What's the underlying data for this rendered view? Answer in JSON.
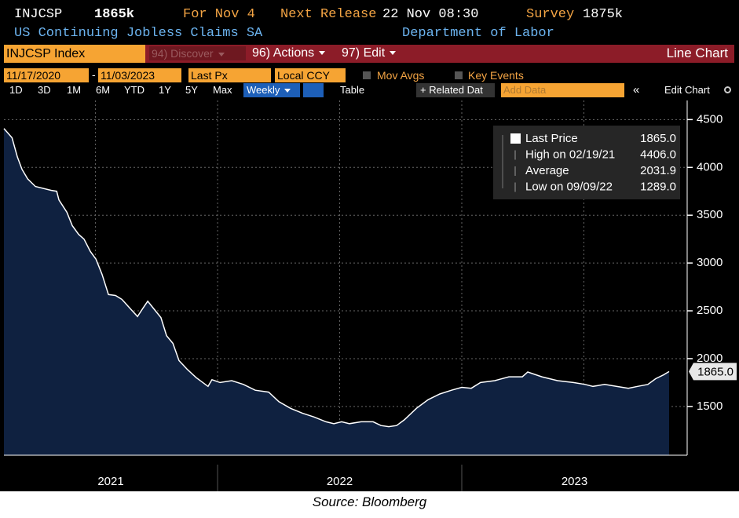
{
  "header": {
    "ticker": "INJCSP",
    "last": "1865k",
    "for": "For Nov 4",
    "next_release_label": "Next Release",
    "next_release": "22 Nov 08:30",
    "survey_label": "Survey",
    "survey": "1875k",
    "name": "US Continuing Jobless Claims SA",
    "source_org": "Department of Labor"
  },
  "toolbar": {
    "security": "INJCSP Index",
    "discover": "94) Discover",
    "actions": "96) Actions",
    "edit": "97) Edit",
    "chart_type": "Line Chart",
    "start_date": "11/17/2020",
    "dash": "-",
    "end_date": "11/03/2023",
    "field": "Last Px",
    "currency": "Local CCY",
    "mov_avgs": "Mov Avgs",
    "key_events": "Key Events",
    "periods": [
      "1D",
      "3D",
      "1M",
      "6M",
      "YTD",
      "1Y",
      "5Y",
      "Max"
    ],
    "frequency": "Weekly",
    "table": "Table",
    "related": "+ Related Dat",
    "add_data": "Add Data",
    "collapse": "«",
    "edit_chart": "Edit Chart"
  },
  "chart_data": {
    "type": "line",
    "color": "#ffffff",
    "fill": "#0f2140",
    "grid": true,
    "x": [
      2021.125,
      2021.158,
      2021.18,
      2021.199,
      2021.222,
      2021.254,
      2021.318,
      2021.341,
      2021.35,
      2021.383,
      2021.405,
      2021.431,
      2021.453,
      2021.479,
      2021.502,
      2021.527,
      2021.553,
      2021.582,
      2021.608,
      2021.64,
      2021.672,
      2021.695,
      2021.714,
      2021.736,
      2021.768,
      2021.791,
      2021.817,
      2021.842,
      2021.875,
      2021.913,
      2021.961,
      2021.977,
      2022.01,
      2022.058,
      2022.106,
      2022.154,
      2022.209,
      2022.251,
      2022.299,
      2022.347,
      2022.395,
      2022.444,
      2022.476,
      2022.508,
      2022.54,
      2022.588,
      2022.637,
      2022.669,
      2022.701,
      2022.733,
      2022.765,
      2022.814,
      2022.862,
      2022.91,
      2022.958,
      2023.0,
      2023.039,
      2023.077,
      2023.135,
      2023.193,
      2023.248,
      2023.27,
      2023.328,
      2023.392,
      2023.457,
      2023.505,
      2023.537,
      2023.585,
      2023.633,
      2023.682,
      2023.72,
      2023.762,
      2023.794,
      2023.826,
      2023.849
    ],
    "values": [
      4406,
      4310,
      4110,
      3980,
      3880,
      3800,
      3760,
      3750,
      3660,
      3530,
      3390,
      3300,
      3250,
      3120,
      3040,
      2880,
      2670,
      2660,
      2620,
      2530,
      2440,
      2530,
      2600,
      2530,
      2430,
      2240,
      2160,
      1980,
      1890,
      1800,
      1710,
      1780,
      1750,
      1770,
      1730,
      1670,
      1650,
      1550,
      1480,
      1430,
      1390,
      1340,
      1320,
      1340,
      1320,
      1340,
      1340,
      1300,
      1289,
      1300,
      1360,
      1480,
      1570,
      1630,
      1670,
      1700,
      1690,
      1750,
      1770,
      1810,
      1810,
      1860,
      1810,
      1770,
      1750,
      1730,
      1710,
      1730,
      1710,
      1690,
      1710,
      1730,
      1790,
      1830,
      1865
    ],
    "xlim": [
      2021.125,
      2023.923
    ],
    "ylim": [
      990,
      4700
    ],
    "yticks": [
      1500,
      2000,
      2500,
      3000,
      3500,
      4000,
      4500
    ],
    "xgrid": [
      2021.5,
      2022,
      2022.5,
      2023,
      2023.5
    ],
    "years": [
      2021,
      2022,
      2023
    ],
    "legend": [
      {
        "label": "Last Price",
        "value": "1865.0"
      },
      {
        "label": "High on 02/19/21",
        "value": "4406.0"
      },
      {
        "label": "Average",
        "value": "2031.9"
      },
      {
        "label": "Low on 09/09/22",
        "value": "1289.0"
      }
    ]
  },
  "source": "Source: Bloomberg"
}
